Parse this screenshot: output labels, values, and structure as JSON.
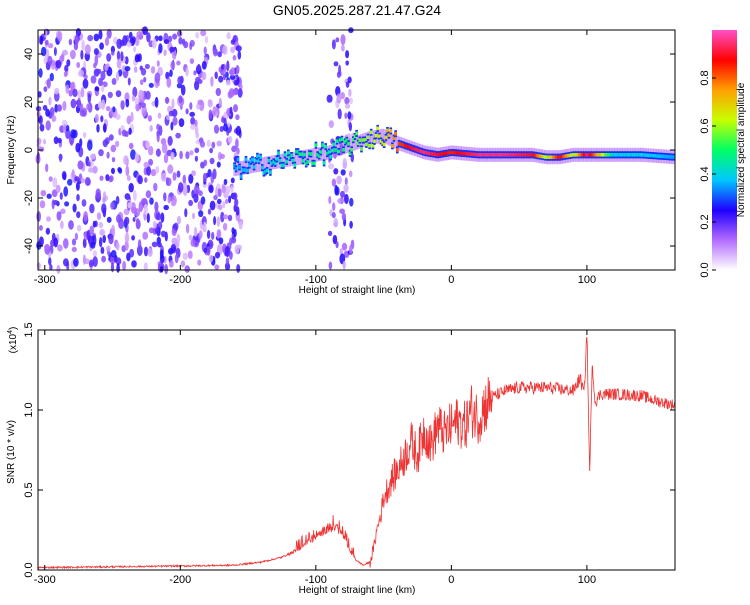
{
  "title": "GN05.2025.287.21.47.G24",
  "chart_data": [
    {
      "type": "heatmap",
      "xlabel": "Height of straight line (km)",
      "ylabel": "Frequency (Hz)",
      "xlim": [
        -305,
        165
      ],
      "ylim": [
        -50,
        50
      ],
      "xticks": [
        -300,
        -200,
        -100,
        0,
        100
      ],
      "xtick_labels": [
        "-300",
        "-200",
        "-100",
        "0",
        "100"
      ],
      "yticks": [
        -40,
        -20,
        0,
        20,
        40
      ],
      "ytick_labels": [
        "-40",
        "-20",
        "0",
        "20",
        "40"
      ],
      "ridge": {
        "description_free": true,
        "x": [
          -160,
          -140,
          -120,
          -100,
          -90,
          -80,
          -70,
          -60,
          -50,
          -40,
          -30,
          -20,
          -10,
          0,
          20,
          40,
          60,
          70,
          80,
          90,
          100,
          120,
          140,
          165
        ],
        "y": [
          -8,
          -6,
          -4,
          -2,
          -1,
          1,
          3,
          5,
          6,
          3,
          1,
          -1,
          -2,
          -1,
          -2,
          -2,
          -2,
          -3,
          -3,
          -2,
          -2,
          -2,
          -2,
          -3
        ],
        "amplitude": [
          0.35,
          0.4,
          0.45,
          0.5,
          0.45,
          0.5,
          0.55,
          0.6,
          0.65,
          0.8,
          0.9,
          0.95,
          0.9,
          0.85,
          0.95,
          0.95,
          0.9,
          0.6,
          0.9,
          0.6,
          0.95,
          0.4,
          0.4,
          0.35
        ]
      },
      "colorbar": {
        "label": "Normalized spectral amplitude",
        "range": [
          0,
          1
        ],
        "ticks": [
          0.0,
          0.2,
          0.4,
          0.6,
          0.8
        ],
        "tick_labels": [
          "0.0",
          "0.2",
          "0.4",
          "0.6",
          "0.8"
        ],
        "colors": [
          "#ffffff",
          "#b36bff",
          "#1e00ff",
          "#00c8ff",
          "#00ff64",
          "#c8ff00",
          "#ffa000",
          "#ff0000",
          "#ff50c8"
        ]
      }
    },
    {
      "type": "line",
      "xlabel": "Height of straight line (km)",
      "ylabel": "SNR (10 * v/v)",
      "scale_label_base": "(x10",
      "scale_label_exp": "4",
      "scale_label_end": ")",
      "xlim": [
        -305,
        165
      ],
      "ylim": [
        0.0,
        1.5
      ],
      "xticks": [
        -300,
        -200,
        -100,
        0,
        100
      ],
      "xtick_labels": [
        "-300",
        "-200",
        "-100",
        "0",
        "100"
      ],
      "yticks": [
        0.0,
        0.5,
        1.0,
        1.5
      ],
      "ytick_labels": [
        "0.0",
        "0.5",
        "1.0",
        "1.5"
      ],
      "color": "#ee3333",
      "series": [
        {
          "name": "SNR",
          "x": [
            -305,
            -250,
            -200,
            -160,
            -140,
            -125,
            -115,
            -105,
            -100,
            -95,
            -90,
            -85,
            -80,
            -75,
            -70,
            -65,
            -60,
            -57,
            -55,
            -52,
            -50,
            -45,
            -40,
            -35,
            -30,
            -25,
            -20,
            -15,
            -10,
            -5,
            0,
            5,
            10,
            15,
            20,
            25,
            30,
            40,
            50,
            60,
            70,
            80,
            90,
            95,
            98,
            100,
            102,
            104,
            106,
            110,
            120,
            140,
            150,
            165
          ],
          "y": [
            0.015,
            0.02,
            0.025,
            0.03,
            0.05,
            0.08,
            0.12,
            0.18,
            0.2,
            0.24,
            0.26,
            0.27,
            0.22,
            0.12,
            0.06,
            0.03,
            0.05,
            0.15,
            0.25,
            0.35,
            0.45,
            0.55,
            0.62,
            0.7,
            0.8,
            0.72,
            0.88,
            0.78,
            0.9,
            0.85,
            0.9,
            0.93,
            0.9,
            1.0,
            0.95,
            1.03,
            1.08,
            1.12,
            1.14,
            1.14,
            1.14,
            1.13,
            1.12,
            1.2,
            1.1,
            1.5,
            0.6,
            1.3,
            1.05,
            1.1,
            1.1,
            1.09,
            1.06,
            1.03
          ]
        }
      ]
    }
  ]
}
